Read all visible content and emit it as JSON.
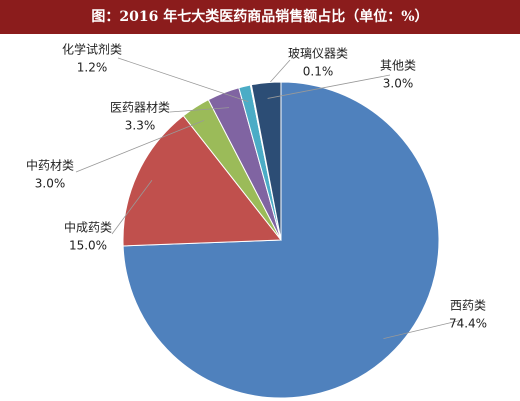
{
  "chart_data": {
    "type": "pie",
    "title": "图：2016 年七大类医药商品销售额占比（单位：%）",
    "categories": [
      "西药类",
      "中成药类",
      "中药材类",
      "医药器材类",
      "化学试剂类",
      "玻璃仪器类",
      "其他类"
    ],
    "values": [
      74.4,
      15.0,
      3.0,
      3.3,
      1.2,
      0.1,
      3.0
    ],
    "value_labels": [
      "74.4%",
      "15.0%",
      "3.0%",
      "3.3%",
      "1.2%",
      "0.1%",
      "3.0%"
    ],
    "colors": [
      "#4f81bd",
      "#c0504d",
      "#9bbb59",
      "#8064a2",
      "#4bacc6",
      "#f79646",
      "#2c4d75"
    ]
  }
}
